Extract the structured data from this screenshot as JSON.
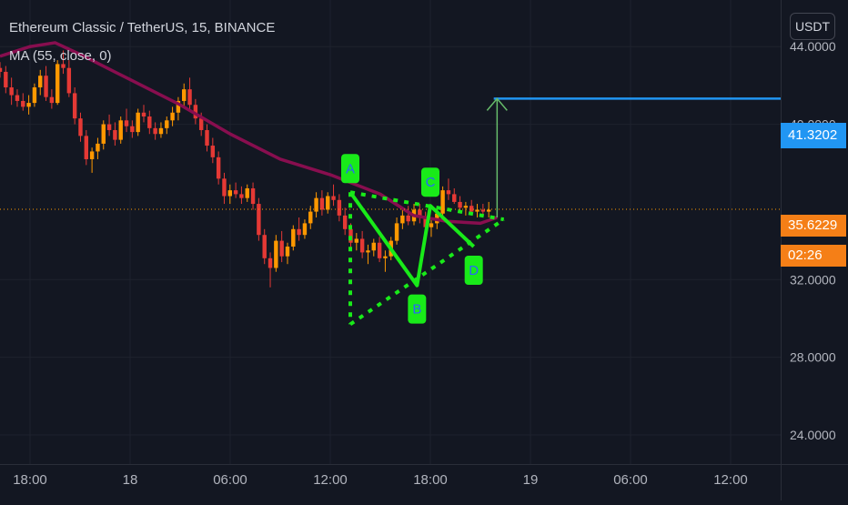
{
  "legend": {
    "symbol": "Ethereum Classic / TetherUS, 15, BINANCE",
    "indicator": "MA (55, close, 0)"
  },
  "currency_button": "USDT",
  "price_labels": {
    "target": "41.3202",
    "last": "35.6229",
    "countdown": "02:26"
  },
  "colors": {
    "background": "#131722",
    "grid": "#1e222d",
    "up_candle": "#ff9800",
    "down_candle": "#e53935",
    "ma_line": "#880e4f",
    "pattern": "#19ea19",
    "target_line": "#2196f3",
    "target_arrow": "#66bb6a"
  },
  "chart_data": {
    "type": "candlestick",
    "symbol": "Ethereum Classic / TetherUS",
    "timeframe": "15",
    "exchange": "BINANCE",
    "y_axis": {
      "ticks": [
        24,
        28,
        32,
        40,
        44
      ],
      "tick_labels": [
        "24.0000",
        "28.0000",
        "32.0000",
        "40.0000",
        "44.0000"
      ],
      "range": [
        22.5,
        46.4
      ]
    },
    "x_axis": {
      "tick_labels": [
        "18:00",
        "18",
        "06:00",
        "12:00",
        "18:00",
        "19",
        "06:00",
        "12:00"
      ],
      "tick_hours": [
        18,
        24,
        30,
        36,
        42,
        48,
        54,
        60
      ],
      "range_hours": [
        16.2,
        63
      ]
    },
    "last_price": 35.6229,
    "ma": {
      "name": "MA (55, close, 0)",
      "points": [
        [
          16.2,
          43.5
        ],
        [
          18,
          44.0
        ],
        [
          19.5,
          44.2
        ],
        [
          21,
          43.6
        ],
        [
          24,
          42.3
        ],
        [
          27,
          41.0
        ],
        [
          30,
          39.5
        ],
        [
          33,
          38.2
        ],
        [
          36,
          37.4
        ],
        [
          39,
          36.4
        ],
        [
          41,
          35.3
        ],
        [
          43,
          35.0
        ],
        [
          45,
          34.9
        ],
        [
          46,
          35.2
        ]
      ]
    },
    "candles": [
      [
        42.9,
        43.2,
        42.4,
        42.7
      ],
      [
        42.7,
        43.0,
        41.6,
        41.9
      ],
      [
        41.9,
        42.4,
        41.0,
        41.5
      ],
      [
        41.5,
        41.8,
        40.9,
        41.2
      ],
      [
        41.2,
        41.6,
        40.7,
        40.9
      ],
      [
        40.9,
        41.5,
        40.5,
        41.1
      ],
      [
        41.1,
        42.1,
        40.9,
        41.9
      ],
      [
        41.9,
        42.8,
        41.5,
        42.5
      ],
      [
        42.5,
        43.0,
        41.2,
        41.4
      ],
      [
        41.4,
        41.8,
        40.8,
        41.1
      ],
      [
        41.1,
        43.3,
        41.0,
        43.1
      ],
      [
        43.1,
        43.8,
        42.6,
        42.9
      ],
      [
        42.9,
        43.3,
        41.4,
        41.6
      ],
      [
        41.6,
        41.9,
        40.0,
        40.3
      ],
      [
        40.3,
        40.6,
        39.1,
        39.4
      ],
      [
        39.4,
        39.7,
        37.9,
        38.2
      ],
      [
        38.2,
        38.8,
        37.5,
        38.6
      ],
      [
        38.6,
        39.3,
        38.2,
        39.0
      ],
      [
        39.0,
        40.2,
        38.7,
        40.0
      ],
      [
        40.0,
        40.5,
        39.4,
        39.7
      ],
      [
        39.7,
        40.1,
        38.9,
        39.2
      ],
      [
        39.2,
        40.4,
        39.0,
        40.2
      ],
      [
        40.2,
        40.8,
        39.6,
        39.9
      ],
      [
        39.9,
        40.2,
        39.3,
        39.6
      ],
      [
        39.6,
        40.8,
        39.4,
        40.6
      ],
      [
        40.6,
        41.0,
        40.1,
        40.4
      ],
      [
        40.4,
        40.7,
        39.5,
        39.8
      ],
      [
        39.8,
        40.1,
        39.2,
        39.5
      ],
      [
        39.5,
        40.1,
        39.3,
        39.8
      ],
      [
        39.8,
        40.4,
        39.5,
        40.2
      ],
      [
        40.2,
        40.9,
        39.9,
        40.6
      ],
      [
        40.6,
        41.4,
        40.2,
        41.2
      ],
      [
        41.2,
        42.1,
        40.9,
        41.8
      ],
      [
        41.8,
        42.4,
        40.8,
        41.0
      ],
      [
        41.0,
        41.3,
        40.0,
        40.3
      ],
      [
        40.3,
        40.6,
        39.4,
        39.7
      ],
      [
        39.7,
        40.0,
        38.6,
        38.9
      ],
      [
        38.9,
        39.3,
        38.0,
        38.3
      ],
      [
        38.3,
        38.6,
        36.9,
        37.2
      ],
      [
        37.2,
        37.5,
        35.9,
        36.3
      ],
      [
        36.3,
        36.9,
        35.9,
        36.6
      ],
      [
        36.6,
        37.0,
        36.2,
        36.4
      ],
      [
        36.4,
        36.8,
        35.9,
        36.2
      ],
      [
        36.2,
        36.9,
        36.0,
        36.7
      ],
      [
        36.7,
        37.0,
        35.6,
        35.9
      ],
      [
        35.9,
        36.2,
        34.0,
        34.3
      ],
      [
        34.3,
        34.6,
        32.8,
        33.1
      ],
      [
        33.1,
        33.4,
        31.6,
        32.6
      ],
      [
        32.6,
        34.3,
        32.4,
        34.0
      ],
      [
        34.0,
        34.5,
        32.9,
        33.2
      ],
      [
        33.2,
        33.9,
        32.8,
        33.7
      ],
      [
        33.7,
        34.8,
        33.5,
        34.6
      ],
      [
        34.6,
        35.2,
        34.0,
        34.3
      ],
      [
        34.3,
        35.1,
        34.1,
        34.9
      ],
      [
        34.9,
        35.8,
        34.6,
        35.5
      ],
      [
        35.5,
        36.5,
        35.2,
        36.2
      ],
      [
        36.2,
        36.6,
        35.3,
        35.6
      ],
      [
        35.6,
        36.5,
        35.4,
        36.3
      ],
      [
        36.3,
        36.9,
        35.8,
        36.1
      ],
      [
        36.1,
        36.4,
        35.0,
        35.3
      ],
      [
        35.3,
        35.7,
        34.3,
        34.6
      ],
      [
        34.6,
        34.9,
        33.6,
        33.9
      ],
      [
        33.9,
        34.4,
        33.5,
        34.1
      ],
      [
        34.1,
        34.5,
        33.1,
        33.4
      ],
      [
        33.4,
        33.8,
        32.8,
        33.5
      ],
      [
        33.5,
        34.1,
        33.2,
        33.9
      ],
      [
        33.9,
        34.2,
        32.9,
        33.1
      ],
      [
        33.1,
        33.5,
        32.4,
        33.2
      ],
      [
        33.2,
        34.2,
        33.0,
        34.0
      ],
      [
        34.0,
        35.2,
        33.8,
        34.9
      ],
      [
        34.9,
        35.6,
        34.6,
        35.3
      ],
      [
        35.3,
        35.8,
        34.8,
        35.0
      ],
      [
        35.0,
        35.9,
        34.8,
        35.6
      ],
      [
        35.6,
        35.9,
        34.9,
        35.2
      ],
      [
        35.2,
        35.5,
        34.4,
        34.7
      ],
      [
        34.7,
        35.1,
        34.2,
        34.9
      ],
      [
        34.9,
        35.6,
        34.6,
        35.4
      ],
      [
        35.4,
        36.8,
        35.2,
        36.6
      ],
      [
        36.6,
        37.2,
        36.1,
        36.4
      ],
      [
        36.4,
        36.7,
        35.9,
        36.0
      ],
      [
        36.0,
        36.3,
        35.5,
        35.7
      ],
      [
        35.7,
        36.0,
        35.3,
        35.8
      ],
      [
        35.8,
        36.1,
        35.4,
        35.5
      ],
      [
        35.5,
        35.9,
        35.2,
        35.6
      ],
      [
        35.6,
        35.9,
        35.3,
        35.5
      ],
      [
        35.5,
        36.0,
        35.2,
        35.6
      ]
    ],
    "candle_time": {
      "start_hour": 16.2,
      "end_hour": 45.5
    },
    "pattern": {
      "points": [
        {
          "label": "A",
          "hour": 37.2,
          "price": 36.5
        },
        {
          "label": "B",
          "hour": 41.2,
          "price": 31.7
        },
        {
          "label": "C",
          "hour": 42.0,
          "price": 35.8
        },
        {
          "label": "D",
          "hour": 44.6,
          "price": 33.7
        }
      ],
      "upper_line": [
        [
          37.2,
          36.5
        ],
        [
          46.4,
          35.1
        ]
      ],
      "lower_line": [
        [
          37.2,
          29.7
        ],
        [
          46.4,
          35.1
        ]
      ],
      "left_line": [
        [
          37.2,
          36.5
        ],
        [
          37.2,
          29.7
        ]
      ]
    },
    "target": {
      "price": 41.3202,
      "line_from_hour": 45.8,
      "arrow_hour": 46.0,
      "arrow_from_price": 35.2
    }
  }
}
